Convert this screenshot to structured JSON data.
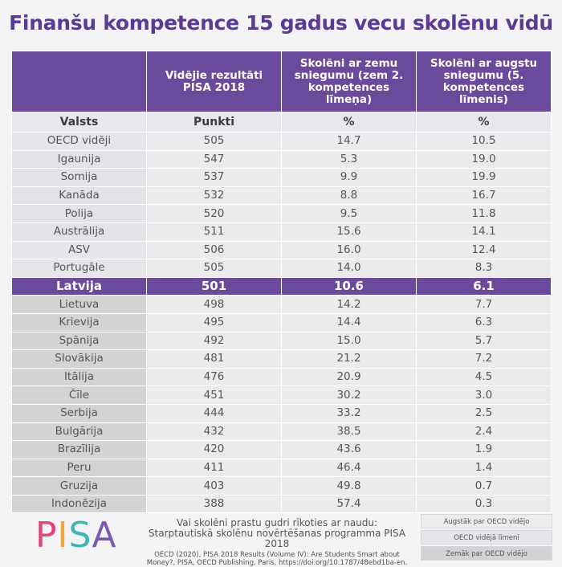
{
  "title": "Finanšu kompetence 15 gadus vecu skolēnu vidū",
  "chart_data": {
    "type": "table",
    "columns": [
      "",
      "Vidējie rezultāti PISA 2018",
      "Skolēni ar zemu sniegumu (zem 2. kompetences līmeņa)",
      "Skolēni ar augstu sniegumu (5. kompetences līmenis)"
    ],
    "units": [
      "Valsts",
      "Punkti",
      "%",
      "%"
    ],
    "rows": [
      {
        "country": "OECD vidēji",
        "score": "505",
        "low": "14.7",
        "high": "10.5",
        "group": "oecd"
      },
      {
        "country": "Igaunija",
        "score": "547",
        "low": "5.3",
        "high": "19.0",
        "group": "above"
      },
      {
        "country": "Somija",
        "score": "537",
        "low": "9.9",
        "high": "19.9",
        "group": "above"
      },
      {
        "country": "Kanāda",
        "score": "532",
        "low": "8.8",
        "high": "16.7",
        "group": "above"
      },
      {
        "country": "Polija",
        "score": "520",
        "low": "9.5",
        "high": "11.8",
        "group": "above"
      },
      {
        "country": "Austrālija",
        "score": "511",
        "low": "15.6",
        "high": "14.1",
        "group": "above"
      },
      {
        "country": "ASV",
        "score": "506",
        "low": "16.0",
        "high": "12.4",
        "group": "oecd"
      },
      {
        "country": "Portugāle",
        "score": "505",
        "low": "14.0",
        "high": "8.3",
        "group": "oecd"
      },
      {
        "country": "Latvija",
        "score": "501",
        "low": "10.6",
        "high": "6.1",
        "group": "highlight"
      },
      {
        "country": "Lietuva",
        "score": "498",
        "low": "14.2",
        "high": "7.7",
        "group": "below"
      },
      {
        "country": "Krievija",
        "score": "495",
        "low": "14.4",
        "high": "6.3",
        "group": "below"
      },
      {
        "country": "Spānija",
        "score": "492",
        "low": "15.0",
        "high": "5.7",
        "group": "below"
      },
      {
        "country": "Slovākija",
        "score": "481",
        "low": "21.2",
        "high": "7.2",
        "group": "below"
      },
      {
        "country": "Itālija",
        "score": "476",
        "low": "20.9",
        "high": "4.5",
        "group": "below"
      },
      {
        "country": "Čīle",
        "score": "451",
        "low": "30.2",
        "high": "3.0",
        "group": "below"
      },
      {
        "country": "Serbija",
        "score": "444",
        "low": "33.2",
        "high": "2.5",
        "group": "below"
      },
      {
        "country": "Bulgārija",
        "score": "432",
        "low": "38.5",
        "high": "2.4",
        "group": "below"
      },
      {
        "country": "Brazīlija",
        "score": "420",
        "low": "43.6",
        "high": "1.9",
        "group": "below"
      },
      {
        "country": "Peru",
        "score": "411",
        "low": "46.4",
        "high": "1.4",
        "group": "below"
      },
      {
        "country": "Gruzija",
        "score": "403",
        "low": "49.8",
        "high": "0.7",
        "group": "below"
      },
      {
        "country": "Indonēzija",
        "score": "388",
        "low": "57.4",
        "high": "0.3",
        "group": "below"
      }
    ]
  },
  "footer": {
    "logo_letters": [
      "P",
      "I",
      "S",
      "A"
    ],
    "logo_colors": [
      "#e0457b",
      "#f0a43a",
      "#3fb6b2",
      "#7a5ab0"
    ],
    "line1": "Vai skolēni prastu gudri rīkoties ar naudu: Starptautiskā skolēnu novērtēšanas programma PISA 2018",
    "line2": "OECD (2020), PISA 2018 Results (Volume IV): Are Students Smart about Money?, PISA, OECD Publishing, Paris, https://doi.org/10.1787/48ebd1ba-en."
  },
  "legend": [
    {
      "label": "Augstāk par OECD vidējo",
      "color": "#ececee"
    },
    {
      "label": "OECD vidējā līmenī",
      "color": "#e6e5e9"
    },
    {
      "label": "Zemāk par OECD vidējo",
      "color": "#d3d3d5"
    }
  ],
  "colors": {
    "accent": "#6b4a9b",
    "title": "#5a3a94"
  }
}
